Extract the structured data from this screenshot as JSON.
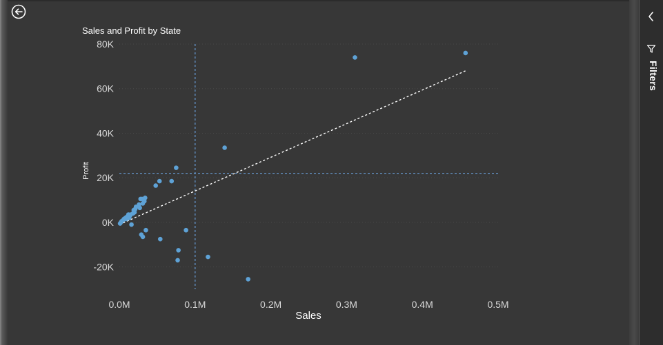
{
  "chart_data": {
    "type": "scatter",
    "title": "Sales and Profit by State",
    "xlabel": "Sales",
    "ylabel": "Profit",
    "xlim": [
      0,
      500000
    ],
    "ylim": [
      -30000,
      80000
    ],
    "x_ticks": [
      {
        "value": 0,
        "label": "0.0M"
      },
      {
        "value": 100000,
        "label": "0.1M"
      },
      {
        "value": 200000,
        "label": "0.2M"
      },
      {
        "value": 300000,
        "label": "0.3M"
      },
      {
        "value": 400000,
        "label": "0.4M"
      },
      {
        "value": 500000,
        "label": "0.5M"
      }
    ],
    "y_ticks": [
      {
        "value": -20000,
        "label": "-20K"
      },
      {
        "value": 0,
        "label": "0K"
      },
      {
        "value": 20000,
        "label": "20K"
      },
      {
        "value": 40000,
        "label": "40K"
      },
      {
        "value": 60000,
        "label": "60K"
      },
      {
        "value": 80000,
        "label": "80K"
      }
    ],
    "reference_lines": {
      "x": 100000,
      "y": 22000
    },
    "trend_line": {
      "x": [
        0,
        457000
      ],
      "y": [
        -1000,
        68000
      ]
    },
    "point_color": "#5ea2d6",
    "points": [
      [
        457000,
        76000
      ],
      [
        311000,
        74000
      ],
      [
        139000,
        33500
      ],
      [
        75000,
        24500
      ],
      [
        53000,
        18500
      ],
      [
        69000,
        18500
      ],
      [
        48000,
        16500
      ],
      [
        34000,
        11000
      ],
      [
        28000,
        10500
      ],
      [
        30000,
        10500
      ],
      [
        33000,
        9500
      ],
      [
        31000,
        8500
      ],
      [
        26000,
        8000
      ],
      [
        22000,
        7000
      ],
      [
        27000,
        6500
      ],
      [
        21000,
        6000
      ],
      [
        19000,
        5500
      ],
      [
        20000,
        4500
      ],
      [
        18000,
        4000
      ],
      [
        15000,
        3500
      ],
      [
        12000,
        3500
      ],
      [
        14000,
        3000
      ],
      [
        10000,
        2500
      ],
      [
        13000,
        2000
      ],
      [
        8000,
        2000
      ],
      [
        9000,
        1500
      ],
      [
        6000,
        1500
      ],
      [
        5000,
        1000
      ],
      [
        3000,
        500
      ],
      [
        2000,
        0
      ],
      [
        1000,
        -500
      ],
      [
        16000,
        -1000
      ],
      [
        35000,
        -3500
      ],
      [
        88000,
        -3500
      ],
      [
        29000,
        -5500
      ],
      [
        31000,
        -6500
      ],
      [
        54000,
        -7500
      ],
      [
        78000,
        -12500
      ],
      [
        117000,
        -15500
      ],
      [
        77000,
        -17000
      ],
      [
        170000,
        -25500
      ]
    ]
  },
  "ui": {
    "back_icon": "back-arrow-circle-icon",
    "collapse_icon": "chevron-left-icon",
    "filter_icon": "funnel-icon",
    "filters_label": "Filters"
  }
}
